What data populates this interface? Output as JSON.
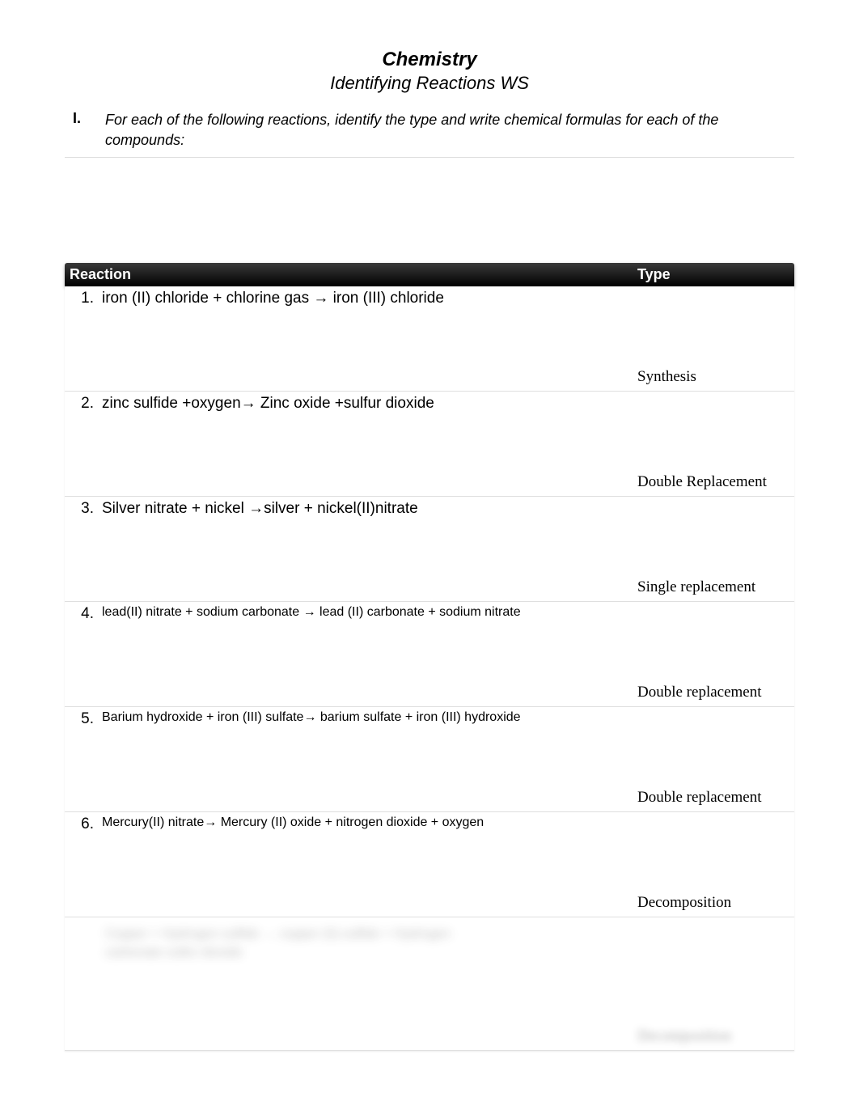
{
  "title": "Chemistry",
  "subtitle": "Identifying Reactions WS",
  "instruction": {
    "roman": "I.",
    "text": "For each of the following reactions, identify the type and write chemical formulas for each of the compounds:"
  },
  "headers": {
    "reaction": "Reaction",
    "type": "Type"
  },
  "rows": [
    {
      "num": "1.",
      "reaction": "iron (II) chloride + chlorine gas → iron (III) chloride",
      "type": "Synthesis",
      "small": false
    },
    {
      "num": "2.",
      "reaction": "zinc sulfide +oxygen→ Zinc oxide  +sulfur dioxide",
      "type": "Double Replacement",
      "small": false
    },
    {
      "num": "3.",
      "reaction": "Silver nitrate + nickel  →silver + nickel(II)nitrate",
      "type": "Single replacement",
      "small": false
    },
    {
      "num": "4.",
      "reaction": "lead(II) nitrate + sodium carbonate → lead (II) carbonate + sodium nitrate",
      "type": "Double replacement",
      "small": true
    },
    {
      "num": "5.",
      "reaction": "Barium hydroxide + iron (III) sulfate→ barium sulfate + iron (III) hydroxide",
      "type": "Double replacement",
      "small": true
    },
    {
      "num": "6.",
      "reaction": "Mercury(II)  nitrate→ Mercury (II) oxide + nitrogen dioxide + oxygen",
      "type": "Decomposition",
      "small": true
    }
  ],
  "blur": {
    "line1": "Copper + Hydrogen sulfide → copper (II) sulfide + Hydrogen",
    "line2": "carbonate  sulfur dioxide",
    "type": "Decomposition"
  }
}
